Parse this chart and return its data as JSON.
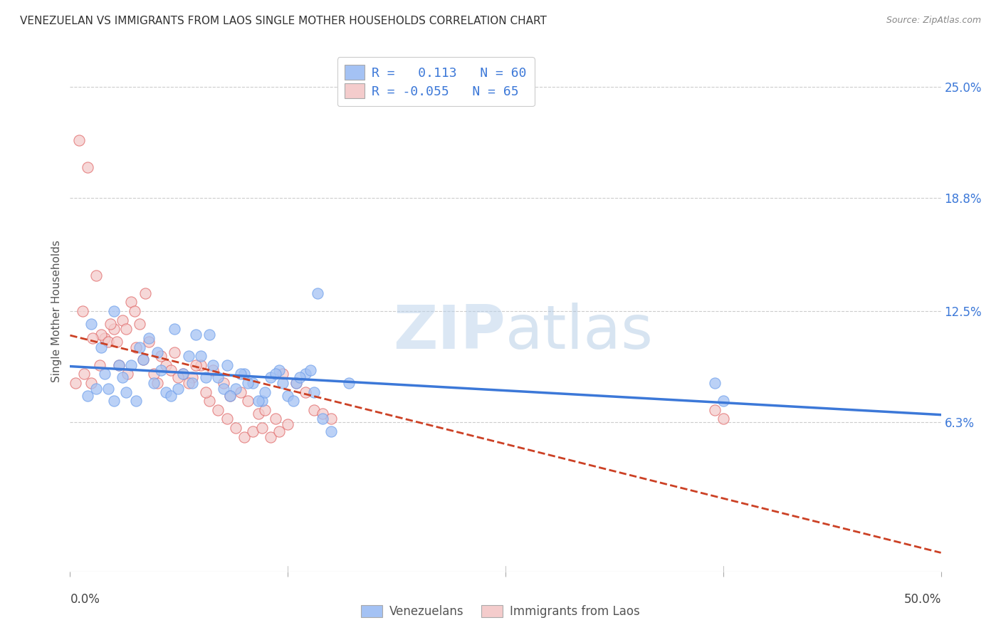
{
  "title": "VENEZUELAN VS IMMIGRANTS FROM LAOS SINGLE MOTHER HOUSEHOLDS CORRELATION CHART",
  "source": "Source: ZipAtlas.com",
  "ylabel": "Single Mother Households",
  "xlim": [
    0.0,
    50.0
  ],
  "ylim": [
    -2.0,
    27.0
  ],
  "yticks": [
    6.3,
    12.5,
    18.8,
    25.0
  ],
  "ytick_labels": [
    "6.3%",
    "12.5%",
    "18.8%",
    "25.0%"
  ],
  "blue_color": "#a4c2f4",
  "pink_color": "#f4cccc",
  "blue_edge_color": "#6d9eeb",
  "pink_edge_color": "#e06666",
  "blue_line_color": "#3c78d8",
  "pink_line_color": "#cc4125",
  "watermark_color": "#cfe2f3",
  "blue_r": 0.113,
  "blue_n": 60,
  "pink_r": -0.055,
  "pink_n": 65,
  "blue_scatter_x": [
    1.0,
    1.5,
    2.0,
    2.5,
    3.0,
    3.5,
    4.0,
    4.5,
    5.0,
    5.5,
    6.0,
    6.5,
    7.0,
    7.5,
    8.0,
    8.5,
    9.0,
    9.5,
    10.0,
    10.5,
    11.0,
    11.5,
    12.0,
    12.5,
    13.0,
    13.5,
    14.0,
    14.5,
    15.0,
    16.0,
    1.2,
    1.8,
    2.2,
    2.8,
    3.2,
    3.8,
    4.2,
    4.8,
    5.2,
    5.8,
    6.2,
    6.8,
    7.2,
    7.8,
    8.2,
    8.8,
    9.2,
    9.8,
    10.2,
    10.8,
    11.2,
    11.8,
    12.2,
    12.8,
    13.2,
    13.8,
    37.0,
    37.5,
    14.2,
    2.5
  ],
  "blue_scatter_y": [
    7.8,
    8.2,
    9.0,
    7.5,
    8.8,
    9.5,
    10.5,
    11.0,
    10.2,
    8.0,
    11.5,
    9.0,
    8.5,
    10.0,
    11.2,
    8.8,
    9.5,
    8.2,
    9.0,
    8.5,
    7.5,
    8.8,
    9.2,
    7.8,
    8.5,
    9.0,
    8.0,
    6.5,
    5.8,
    8.5,
    11.8,
    10.5,
    8.2,
    9.5,
    8.0,
    7.5,
    9.8,
    8.5,
    9.2,
    7.8,
    8.2,
    10.0,
    11.2,
    8.8,
    9.5,
    8.2,
    7.8,
    9.0,
    8.5,
    7.5,
    8.0,
    9.0,
    8.5,
    7.5,
    8.8,
    9.2,
    8.5,
    7.5,
    13.5,
    12.5
  ],
  "pink_scatter_x": [
    0.5,
    1.0,
    1.5,
    2.0,
    2.5,
    3.0,
    3.5,
    4.0,
    4.5,
    5.0,
    5.5,
    6.0,
    6.5,
    7.0,
    7.5,
    8.0,
    8.5,
    9.0,
    9.5,
    10.0,
    10.5,
    11.0,
    11.5,
    12.0,
    12.5,
    13.0,
    13.5,
    14.0,
    14.5,
    15.0,
    0.8,
    1.2,
    1.8,
    2.2,
    2.8,
    3.2,
    3.8,
    4.2,
    4.8,
    5.2,
    5.8,
    6.2,
    6.8,
    7.2,
    7.8,
    8.2,
    8.8,
    9.2,
    9.8,
    10.2,
    10.8,
    11.2,
    11.8,
    12.2,
    0.3,
    0.7,
    1.3,
    1.7,
    2.3,
    2.7,
    3.3,
    3.7,
    4.3,
    37.0,
    37.5
  ],
  "pink_scatter_y": [
    22.0,
    20.5,
    14.5,
    11.0,
    11.5,
    12.0,
    13.0,
    11.8,
    10.8,
    8.5,
    9.5,
    10.2,
    9.0,
    8.8,
    9.5,
    7.5,
    7.0,
    6.5,
    6.0,
    5.5,
    5.8,
    6.0,
    5.5,
    5.8,
    6.2,
    8.5,
    8.0,
    7.0,
    6.8,
    6.5,
    9.0,
    8.5,
    11.2,
    10.8,
    9.5,
    11.5,
    10.5,
    9.8,
    9.0,
    10.0,
    9.2,
    8.8,
    8.5,
    9.5,
    8.0,
    9.2,
    8.5,
    7.8,
    8.0,
    7.5,
    6.8,
    7.0,
    6.5,
    9.0,
    8.5,
    12.5,
    11.0,
    9.5,
    11.8,
    10.8,
    9.0,
    12.5,
    13.5,
    7.0,
    6.5
  ]
}
